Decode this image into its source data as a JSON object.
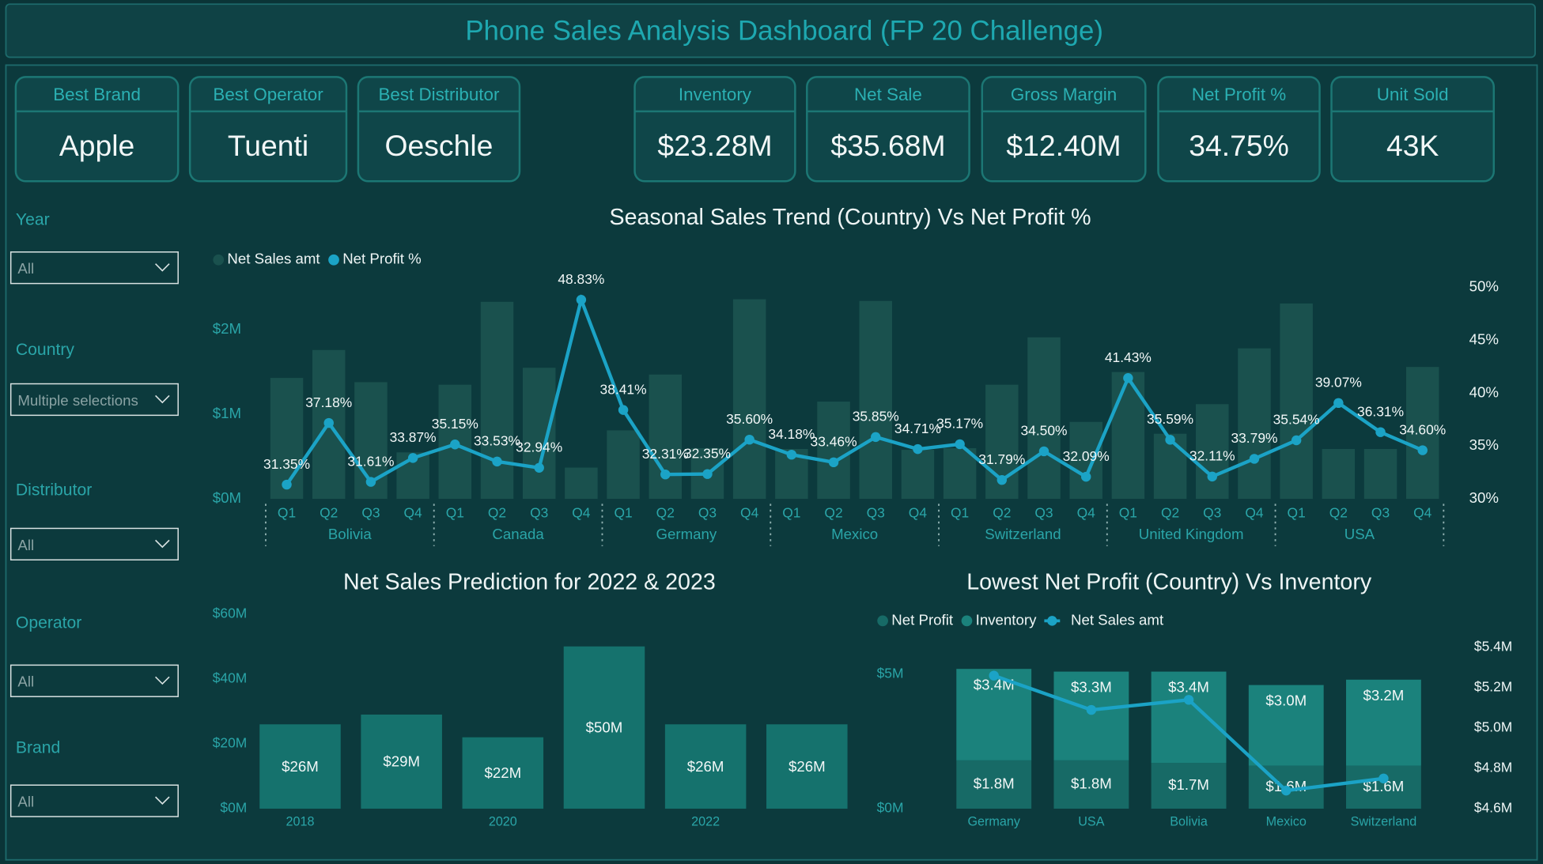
{
  "title": "Phone Sales Analysis Dashboard (FP 20 Challenge)",
  "cards": [
    {
      "label": "Best Brand",
      "value": "Apple"
    },
    {
      "label": "Best Operator",
      "value": "Tuenti"
    },
    {
      "label": "Best Distributor",
      "value": "Oeschle"
    },
    {
      "label": "Inventory",
      "value": "$23.28M"
    },
    {
      "label": "Net Sale",
      "value": "$35.68M"
    },
    {
      "label": "Gross Margin",
      "value": "$12.40M"
    },
    {
      "label": "Net Profit %",
      "value": "34.75%"
    },
    {
      "label": "Unit Sold",
      "value": "43K"
    }
  ],
  "filters": [
    {
      "label": "Year",
      "value": "All"
    },
    {
      "label": "Country",
      "value": "Multiple selections"
    },
    {
      "label": "Distributor",
      "value": "All"
    },
    {
      "label": "Operator",
      "value": "All"
    },
    {
      "label": "Brand",
      "value": "All"
    }
  ],
  "chart_data": [
    {
      "type": "combo",
      "title": "Seasonal Sales Trend (Country) Vs Net Profit %",
      "categories": [
        "Q1",
        "Q2",
        "Q3",
        "Q4",
        "Q1",
        "Q2",
        "Q3",
        "Q4",
        "Q1",
        "Q2",
        "Q3",
        "Q4",
        "Q1",
        "Q2",
        "Q3",
        "Q4",
        "Q1",
        "Q2",
        "Q3",
        "Q4",
        "Q1",
        "Q2",
        "Q3",
        "Q4",
        "Q1",
        "Q2",
        "Q3",
        "Q4"
      ],
      "groups": [
        "Bolivia",
        "Canada",
        "Germany",
        "Mexico",
        "Switzerland",
        "United Kingdom",
        "USA"
      ],
      "series": [
        {
          "name": "Net Sales amt",
          "type": "bar",
          "color": "#1a514e",
          "values": [
            1430000,
            1760000,
            1380000,
            550000,
            1350000,
            2330000,
            1550000,
            370000,
            810000,
            1470000,
            600000,
            2360000,
            590000,
            1150000,
            2340000,
            580000,
            600000,
            1350000,
            1910000,
            910000,
            1500000,
            770000,
            1120000,
            1780000,
            2310000,
            590000,
            590000,
            1560000
          ]
        },
        {
          "name": "Net Profit %",
          "type": "line",
          "axis": "y2",
          "color": "#1ba3c6",
          "values": [
            31.35,
            37.18,
            31.61,
            33.87,
            35.15,
            33.53,
            32.94,
            48.83,
            38.41,
            32.31,
            32.35,
            35.6,
            34.18,
            33.46,
            35.85,
            34.71,
            35.17,
            31.79,
            34.5,
            32.09,
            41.43,
            35.59,
            32.11,
            33.79,
            35.54,
            39.07,
            36.31,
            34.6
          ],
          "value_labels": [
            "31.35%",
            "37.18%",
            "31.61%",
            "33.87%",
            "35.15%",
            "33.53%",
            "32.94%",
            "48.83%",
            "38.41%",
            "32.31%",
            "32.35%",
            "35.60%",
            "34.18%",
            "33.46%",
            "35.85%",
            "34.71%",
            "35.17%",
            "31.79%",
            "34.50%",
            "32.09%",
            "41.43%",
            "35.59%",
            "32.11%",
            "33.79%",
            "35.54%",
            "39.07%",
            "36.31%",
            "34.60%"
          ]
        }
      ],
      "ylim": [
        0,
        2500000
      ],
      "yticks": [
        {
          "value": 0,
          "label": "$0M"
        },
        {
          "value": 1000000,
          "label": "$1M"
        },
        {
          "value": 2000000,
          "label": "$2M"
        }
      ],
      "y2lim": [
        30,
        50
      ],
      "y2ticks": [
        {
          "value": 30,
          "label": "30%"
        },
        {
          "value": 35,
          "label": "35%"
        },
        {
          "value": 40,
          "label": "40%"
        },
        {
          "value": 45,
          "label": "45%"
        },
        {
          "value": 50,
          "label": "50%"
        }
      ],
      "grid": false,
      "legend": "top-left"
    },
    {
      "type": "bar",
      "title": "Net Sales Prediction for 2022 & 2023",
      "categories": [
        "2018",
        null,
        "2020",
        null,
        "2022",
        null
      ],
      "values": [
        26000000,
        29000000,
        22000000,
        50000000,
        26000000,
        26000000
      ],
      "value_labels": [
        "$26M",
        "$29M",
        "$22M",
        "$50M",
        "$26M",
        "$26M"
      ],
      "color": "#15726d",
      "ylim": [
        0,
        60000000
      ],
      "yticks": [
        {
          "value": 0,
          "label": "$0M"
        },
        {
          "value": 20000000,
          "label": "$20M"
        },
        {
          "value": 40000000,
          "label": "$40M"
        },
        {
          "value": 60000000,
          "label": "$60M"
        }
      ],
      "grid": false
    },
    {
      "type": "stacked-combo",
      "title": "Lowest Net Profit (Country) Vs Inventory",
      "categories": [
        "Germany",
        "USA",
        "Bolivia",
        "Mexico",
        "Switzerland"
      ],
      "series": [
        {
          "name": "Net Profit",
          "type": "bar",
          "color": "#176a66",
          "values": [
            1800000,
            1800000,
            1700000,
            1600000,
            1600000
          ],
          "value_labels": [
            "$1.8M",
            "$1.8M",
            "$1.7M",
            "$1.6M",
            "$1.6M"
          ]
        },
        {
          "name": "Inventory",
          "type": "bar",
          "color": "#1b827c",
          "values": [
            3400000,
            3300000,
            3400000,
            3000000,
            3200000
          ],
          "value_labels": [
            "$3.4M",
            "$3.3M",
            "$3.4M",
            "$3.0M",
            "$3.2M"
          ]
        },
        {
          "name": "Net Sales amt",
          "type": "line",
          "axis": "y2",
          "color": "#1ba3c6",
          "values": [
            5260000,
            5090000,
            5140000,
            4690000,
            4750000
          ]
        }
      ],
      "ylim": [
        0,
        6000000
      ],
      "yticks": [
        {
          "value": 0,
          "label": "$0M"
        },
        {
          "value": 5000000,
          "label": "$5M"
        }
      ],
      "y2lim": [
        4600000,
        5400000
      ],
      "y2ticks": [
        {
          "value": 4600000,
          "label": "$4.6M"
        },
        {
          "value": 4800000,
          "label": "$4.8M"
        },
        {
          "value": 5000000,
          "label": "$5.0M"
        },
        {
          "value": 5200000,
          "label": "$5.2M"
        },
        {
          "value": 5400000,
          "label": "$5.4M"
        }
      ],
      "grid": false,
      "legend": "top-left"
    }
  ]
}
